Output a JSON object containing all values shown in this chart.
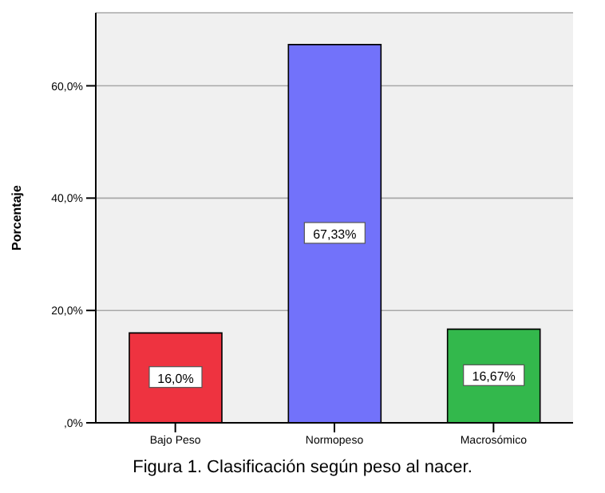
{
  "chart_data": {
    "type": "bar",
    "ylabel": "Porcentaje",
    "categories": [
      "Bajo Peso",
      "Normopeso",
      "Macrosómico"
    ],
    "values": [
      16.0,
      67.33,
      16.67
    ],
    "colors": [
      "#ee3340",
      "#7272fa",
      "#33b84c"
    ],
    "value_labels": [
      "16,0%",
      "67,33%",
      "16,67%"
    ],
    "ylim": [
      0,
      73
    ],
    "yticks": [
      {
        "value": 0,
        "label": ",0%"
      },
      {
        "value": 20,
        "label": "20,0%"
      },
      {
        "value": 40,
        "label": "40,0%"
      },
      {
        "value": 60,
        "label": "60,0%"
      }
    ],
    "grid": "y",
    "annotations": [
      "Figura 1. Clasificación según peso al nacer."
    ]
  }
}
